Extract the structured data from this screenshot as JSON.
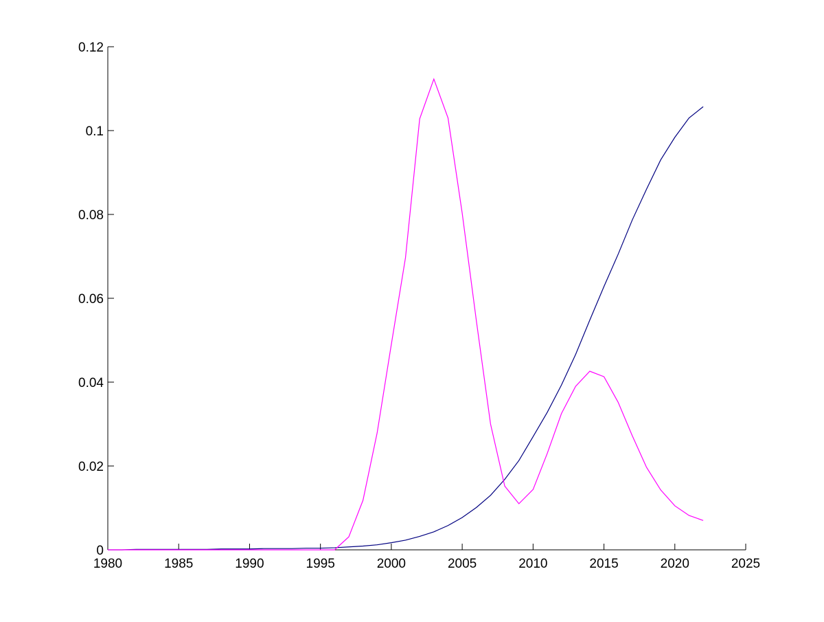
{
  "chart_data": {
    "type": "line",
    "x": [
      1980,
      1981,
      1982,
      1983,
      1984,
      1985,
      1986,
      1987,
      1988,
      1989,
      1990,
      1991,
      1992,
      1993,
      1994,
      1995,
      1996,
      1997,
      1998,
      1999,
      2000,
      2001,
      2002,
      2003,
      2004,
      2005,
      2006,
      2007,
      2008,
      2009,
      2010,
      2011,
      2012,
      2013,
      2014,
      2015,
      2016,
      2017,
      2018,
      2019,
      2020,
      2021,
      2022
    ],
    "series": [
      {
        "color": "#000080",
        "values": [
          0,
          0,
          0.0001,
          0.0001,
          0.0001,
          0.0001,
          0.0001,
          0.0001,
          0.0002,
          0.0002,
          0.0002,
          0.0003,
          0.0003,
          0.0003,
          0.0004,
          0.0004,
          0.0005,
          0.0007,
          0.0009,
          0.0012,
          0.0017,
          0.0023,
          0.0032,
          0.0043,
          0.0058,
          0.0077,
          0.0101,
          0.013,
          0.0168,
          0.0213,
          0.027,
          0.0328,
          0.0393,
          0.0466,
          0.0548,
          0.0628,
          0.0705,
          0.0787,
          0.086,
          0.093,
          0.0984,
          0.103,
          0.1057
        ]
      },
      {
        "color": "#ff00ff",
        "values": [
          0,
          0,
          0,
          0,
          0,
          0,
          0,
          0,
          0,
          0,
          0,
          0,
          0,
          0,
          0,
          0,
          0,
          0.0031,
          0.0118,
          0.0279,
          0.049,
          0.0697,
          0.1028,
          0.1123,
          0.103,
          0.0803,
          0.0546,
          0.03,
          0.0152,
          0.011,
          0.0144,
          0.023,
          0.0325,
          0.039,
          0.0426,
          0.0413,
          0.0352,
          0.0272,
          0.0197,
          0.0143,
          0.0105,
          0.0082,
          0.007
        ]
      }
    ],
    "xlim": [
      1980,
      2025
    ],
    "xticks": [
      1980,
      1985,
      1990,
      1995,
      2000,
      2005,
      2010,
      2015,
      2020,
      2025
    ],
    "ylim": [
      0,
      0.12
    ],
    "yticks": [
      0,
      0.02,
      0.04,
      0.06,
      0.08,
      0.1,
      0.12
    ]
  }
}
